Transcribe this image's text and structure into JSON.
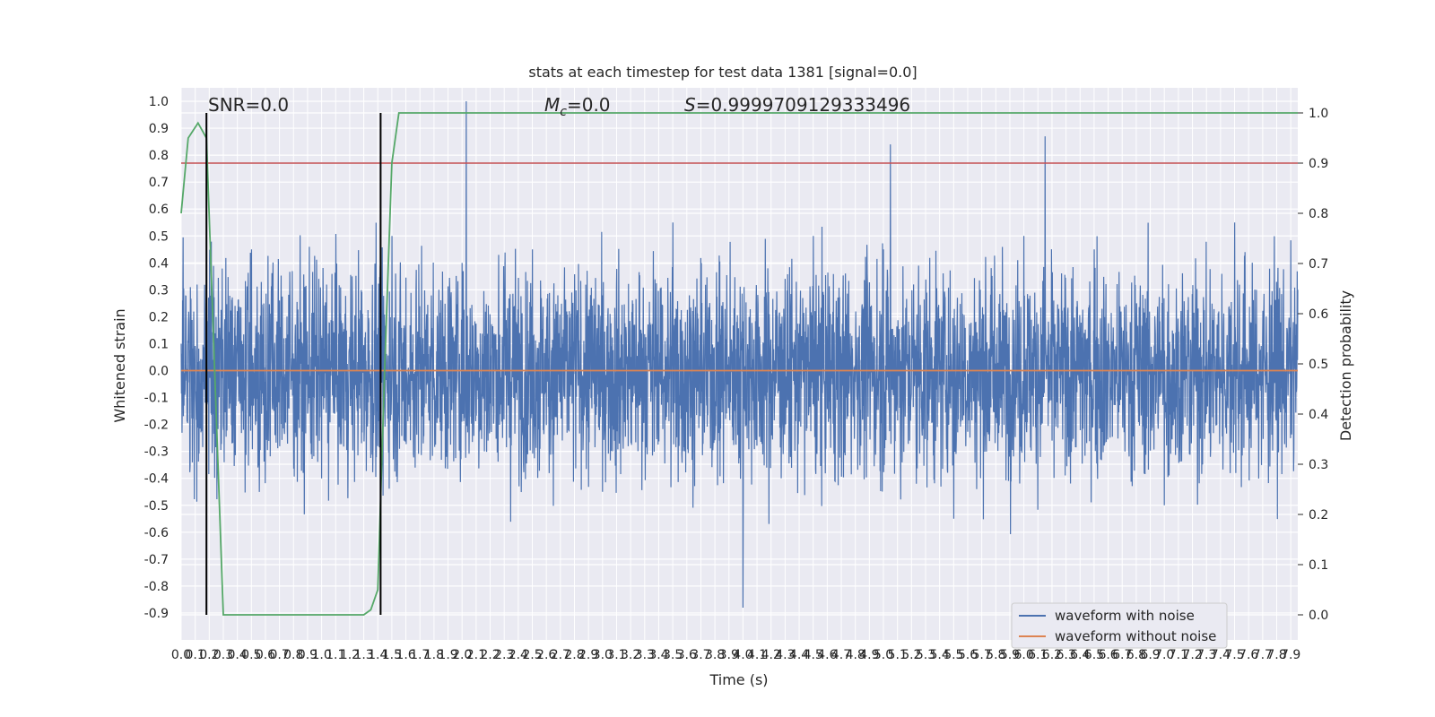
{
  "chart_data": {
    "type": "line",
    "title": "stats at each timestep for test data 1381 [signal=0.0]",
    "xlabel": "Time (s)",
    "ylabel_left": "Whitened strain",
    "ylabel_right": "Detection probability",
    "xlim": [
      0.0,
      7.95
    ],
    "ylim_left": [
      -1.0,
      1.05
    ],
    "ylim_right": [
      -0.05,
      1.05
    ],
    "x_ticks": [
      "0.0",
      "0.1",
      "0.2",
      "0.3",
      "0.4",
      "0.5",
      "0.6",
      "0.7",
      "0.8",
      "0.9",
      "1.0",
      "1.1",
      "1.2",
      "1.3",
      "1.4",
      "1.5",
      "1.6",
      "1.7",
      "1.8",
      "1.9",
      "2.0",
      "2.1",
      "2.2",
      "2.3",
      "2.4",
      "2.5",
      "2.6",
      "2.7",
      "2.8",
      "2.9",
      "3.0",
      "3.1",
      "3.2",
      "3.3",
      "3.4",
      "3.5",
      "3.6",
      "3.7",
      "3.8",
      "3.9",
      "4.0",
      "4.1",
      "4.2",
      "4.3",
      "4.4",
      "4.5",
      "4.6",
      "4.7",
      "4.8",
      "4.9",
      "5.0",
      "5.1",
      "5.2",
      "5.3",
      "5.4",
      "5.5",
      "5.6",
      "5.7",
      "5.8",
      "5.9",
      "6.0",
      "6.1",
      "6.2",
      "6.3",
      "6.4",
      "6.5",
      "6.6",
      "6.7",
      "6.8",
      "6.9",
      "7.0",
      "7.1",
      "7.2",
      "7.3",
      "7.4",
      "7.5",
      "7.6",
      "7.7",
      "7.8",
      "7.9"
    ],
    "y_ticks_left": [
      "1.0",
      "0.9",
      "0.8",
      "0.7",
      "0.6",
      "0.5",
      "0.4",
      "0.3",
      "0.2",
      "0.1",
      "0.0",
      "-0.1",
      "-0.2",
      "-0.3",
      "-0.4",
      "-0.5",
      "-0.6",
      "-0.7",
      "-0.8",
      "-0.9"
    ],
    "y_ticks_right": [
      "1.0",
      "0.9",
      "0.8",
      "0.7",
      "0.6",
      "0.5",
      "0.4",
      "0.3",
      "0.2",
      "0.1",
      "0.0"
    ],
    "annotations": {
      "snr": "SNR=0.0",
      "mc_symbol": "M",
      "mc_subscript": "c",
      "mc_value": "=0.0",
      "s_symbol": "S",
      "s_value": "=0.9999709129333496"
    },
    "series": [
      {
        "name": "waveform with noise",
        "color": "#4c72b0",
        "description_points": {
          "x": [
            0.0,
            0.5,
            1.0,
            1.5,
            2.0,
            2.03,
            2.5,
            3.0,
            3.5,
            4.0,
            4.5,
            5.0,
            5.05,
            5.5,
            6.0,
            6.15,
            6.5,
            7.0,
            7.5,
            7.95
          ],
          "y": [
            0.1,
            0.45,
            -0.4,
            0.5,
            0.4,
            1.0,
            0.45,
            -0.45,
            0.55,
            -0.88,
            0.5,
            0.45,
            0.84,
            -0.55,
            0.5,
            0.87,
            0.45,
            -0.5,
            0.55,
            0.3
          ]
        }
      },
      {
        "name": "waveform without noise",
        "color": "#dd8452",
        "x": [
          0.0,
          7.95
        ],
        "y": [
          0.0,
          0.0
        ]
      },
      {
        "name": "",
        "color": "#55a868",
        "axis": "right",
        "x": [
          0.0,
          0.05,
          0.12,
          0.18,
          0.3,
          0.35,
          0.45,
          0.8,
          1.0,
          1.2,
          1.3,
          1.35,
          1.4,
          1.45,
          1.5,
          1.55,
          7.95
        ],
        "y": [
          0.8,
          0.95,
          0.98,
          0.95,
          0.0,
          0.0,
          0.0,
          0.0,
          0.0,
          0.0,
          0.0,
          0.01,
          0.05,
          0.5,
          0.9,
          1.0,
          1.0
        ]
      }
    ],
    "threshold_line": {
      "value": 0.9,
      "axis": "right",
      "color": "#c44e52"
    },
    "vertical_lines": {
      "x": [
        0.18,
        1.42
      ],
      "color": "#000000"
    },
    "legend": {
      "placement": "lower-right",
      "entries": [
        "waveform with noise",
        "waveform without noise"
      ]
    },
    "grid": true,
    "colors": {
      "background": "#eaeaf2",
      "grid": "#ffffff",
      "noise": "#4c72b0",
      "clean": "#dd8452",
      "probability": "#55a868",
      "threshold": "#c44e52"
    }
  }
}
